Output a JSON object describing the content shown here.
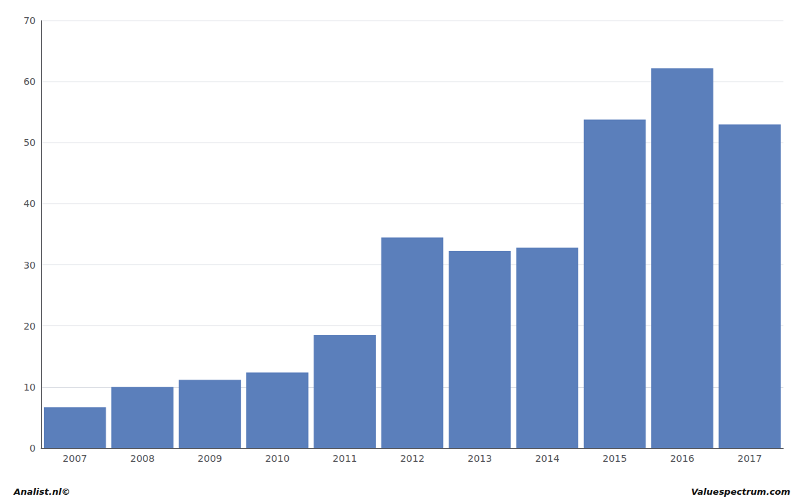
{
  "chart_data": {
    "type": "bar",
    "categories": [
      "2007",
      "2008",
      "2009",
      "2010",
      "2011",
      "2012",
      "2013",
      "2014",
      "2015",
      "2016",
      "2017"
    ],
    "values": [
      6.7,
      10.0,
      11.2,
      12.4,
      18.5,
      34.5,
      32.3,
      32.8,
      53.8,
      62.2,
      53.0
    ],
    "color": "#5b7fbb",
    "ylim": [
      0,
      70
    ],
    "yticks": [
      0,
      10,
      20,
      30,
      40,
      50,
      60,
      70
    ],
    "grid": true,
    "annotations": [
      "Analist.nl©",
      "Valuespectrum.com"
    ]
  }
}
